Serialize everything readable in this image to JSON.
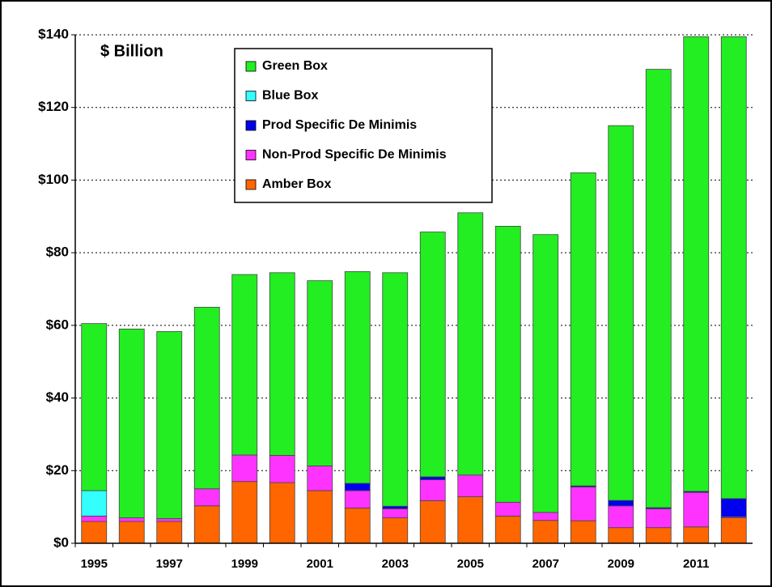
{
  "chart_data": {
    "type": "stacked_bar",
    "annotation": "$ Billion",
    "categories": [
      "1995",
      null,
      "1997",
      null,
      "1999",
      null,
      "2001",
      null,
      "2003",
      null,
      "2005",
      null,
      "2007",
      null,
      "2009",
      null,
      "2011",
      null
    ],
    "series": [
      {
        "name": "Amber Box",
        "color": "#ff6600",
        "values": [
          6,
          6,
          6,
          10.3,
          17,
          16.7,
          14.5,
          9.7,
          7,
          11.7,
          12.8,
          7.5,
          6.3,
          6.2,
          4.3,
          4.3,
          4.5,
          7
        ]
      },
      {
        "name": "Non-Prod Specific De Minimis",
        "color": "#ff33ff",
        "values": [
          1.5,
          1,
          0.8,
          4.7,
          7.3,
          7.5,
          6.8,
          4.8,
          2.5,
          5.8,
          6,
          3.8,
          2.2,
          9.3,
          6,
          5.2,
          9.5,
          0.3
        ]
      },
      {
        "name": "Prod Specific De Minimis",
        "color": "#0000ee",
        "values": [
          0,
          0,
          0,
          0,
          0,
          0,
          0,
          2,
          0.7,
          0.8,
          0,
          0,
          0,
          0.3,
          1.5,
          0.3,
          0.3,
          5
        ]
      },
      {
        "name": "Blue Box",
        "color": "#33ffff",
        "values": [
          7,
          0,
          0,
          0,
          0,
          0,
          0,
          0,
          0,
          0,
          0,
          0,
          0,
          0,
          0,
          0,
          0,
          0
        ]
      },
      {
        "name": "Green Box",
        "color": "#22ee22",
        "values": [
          46,
          52,
          51.5,
          50,
          49.7,
          50.3,
          51,
          58.3,
          64.3,
          67.4,
          72.2,
          76,
          76.5,
          86.2,
          103.2,
          120.7,
          125.2,
          127.2
        ]
      }
    ],
    "ylim": [
      0,
      140
    ],
    "yticks": [
      {
        "value": 0,
        "label": "$0"
      },
      {
        "value": 20,
        "label": "$20"
      },
      {
        "value": 40,
        "label": "$40"
      },
      {
        "value": 60,
        "label": "$60"
      },
      {
        "value": 80,
        "label": "$80"
      },
      {
        "value": 100,
        "label": "$100"
      },
      {
        "value": 120,
        "label": "$120"
      },
      {
        "value": 140,
        "label": "$140"
      }
    ],
    "grid": true,
    "legend": "top-left"
  }
}
